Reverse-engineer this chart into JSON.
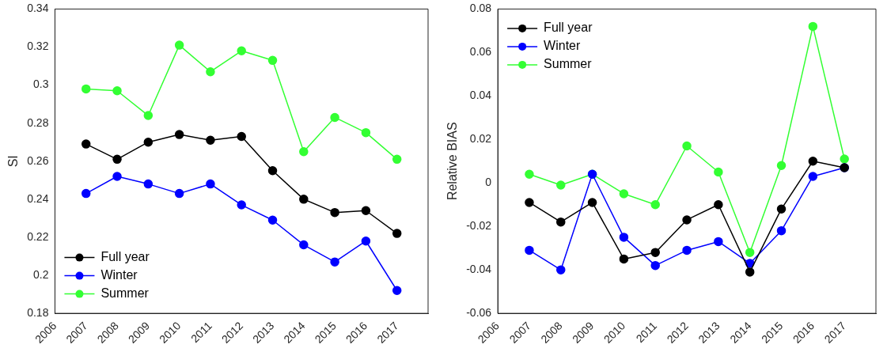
{
  "chart_data": [
    {
      "type": "line",
      "ylabel": "SI",
      "x": [
        2007,
        2008,
        2009,
        2010,
        2011,
        2012,
        2013,
        2014,
        2015,
        2016,
        2017
      ],
      "xlim": [
        2006,
        2018
      ],
      "xticks": [
        2006,
        2007,
        2008,
        2009,
        2010,
        2011,
        2012,
        2013,
        2014,
        2015,
        2016,
        2017
      ],
      "ylim": [
        0.18,
        0.34
      ],
      "yticks": [
        0.18,
        0.2,
        0.22,
        0.24,
        0.26,
        0.28,
        0.3,
        0.32,
        0.34
      ],
      "grid": false,
      "legend": "bottom left",
      "marker": "circle",
      "line_style": "solid",
      "series": [
        {
          "name": "Full year",
          "color": "#000000",
          "values": [
            0.269,
            0.261,
            0.27,
            0.274,
            0.271,
            0.273,
            0.255,
            0.24,
            0.233,
            0.234,
            0.222
          ]
        },
        {
          "name": "Winter",
          "color": "#0000ff",
          "values": [
            0.243,
            0.252,
            0.248,
            0.243,
            0.248,
            0.237,
            0.229,
            0.216,
            0.207,
            0.218,
            0.192
          ]
        },
        {
          "name": "Summer",
          "color": "#33ff33",
          "values": [
            0.298,
            0.297,
            0.284,
            0.321,
            0.307,
            0.318,
            0.313,
            0.265,
            0.283,
            0.275,
            0.261
          ]
        }
      ]
    },
    {
      "type": "line",
      "ylabel": "Relative BIAS",
      "x": [
        2007,
        2008,
        2009,
        2010,
        2011,
        2012,
        2013,
        2014,
        2015,
        2016,
        2017
      ],
      "xlim": [
        2006,
        2018
      ],
      "xticks": [
        2006,
        2007,
        2008,
        2009,
        2010,
        2011,
        2012,
        2013,
        2014,
        2015,
        2016,
        2017
      ],
      "ylim": [
        -0.06,
        0.08
      ],
      "yticks": [
        -0.06,
        -0.04,
        -0.02,
        0,
        0.02,
        0.04,
        0.06,
        0.08
      ],
      "grid": false,
      "legend": "top left",
      "marker": "circle",
      "line_style": "solid",
      "series": [
        {
          "name": "Full year",
          "color": "#000000",
          "values": [
            -0.009,
            -0.018,
            -0.009,
            -0.035,
            -0.032,
            -0.017,
            -0.01,
            -0.041,
            -0.012,
            0.01,
            0.007
          ]
        },
        {
          "name": "Winter",
          "color": "#0000ff",
          "values": [
            -0.031,
            -0.04,
            0.004,
            -0.025,
            -0.038,
            -0.031,
            -0.027,
            -0.037,
            -0.022,
            0.003,
            0.007
          ]
        },
        {
          "name": "Summer",
          "color": "#33ff33",
          "values": [
            0.004,
            -0.001,
            0.004,
            -0.005,
            -0.01,
            0.017,
            0.005,
            -0.032,
            0.008,
            0.072,
            0.011
          ]
        }
      ]
    }
  ]
}
